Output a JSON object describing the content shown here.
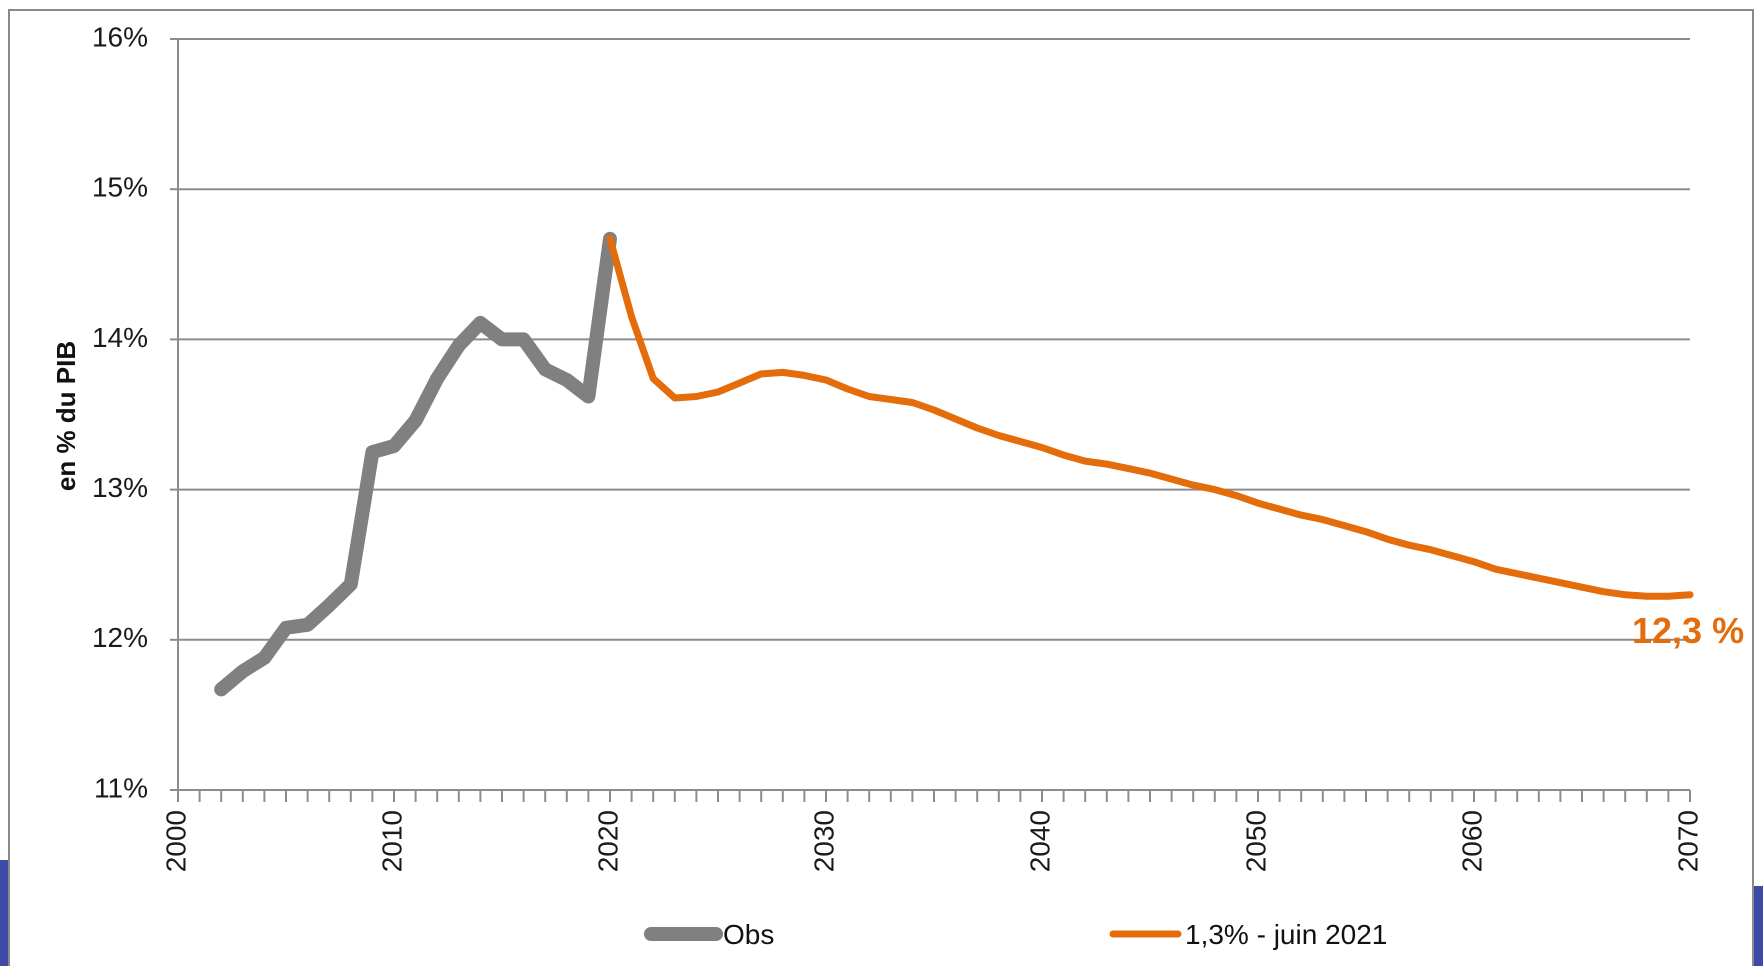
{
  "chart_data": {
    "type": "line",
    "title": "",
    "xlabel": "",
    "ylabel": "en % du PIB",
    "xlim": [
      2000,
      2070
    ],
    "ylim": [
      11,
      16
    ],
    "y_ticks": [
      11,
      12,
      13,
      14,
      15,
      16
    ],
    "y_tick_labels": [
      "11%",
      "12%",
      "13%",
      "14%",
      "15%",
      "16%"
    ],
    "x_ticks": [
      2000,
      2010,
      2020,
      2030,
      2040,
      2050,
      2060,
      2070
    ],
    "x_tick_labels": [
      "2000",
      "2010",
      "2020",
      "2030",
      "2040",
      "2050",
      "2060",
      "2070"
    ],
    "grid": true,
    "legend_position": "bottom",
    "series": [
      {
        "name": "Obs",
        "color": "#808080",
        "x": [
          2002,
          2003,
          2004,
          2005,
          2006,
          2007,
          2008,
          2009,
          2010,
          2011,
          2012,
          2013,
          2014,
          2015,
          2016,
          2017,
          2018,
          2019,
          2020
        ],
        "values": [
          11.67,
          11.79,
          11.88,
          12.08,
          12.1,
          12.23,
          12.37,
          13.25,
          13.29,
          13.46,
          13.74,
          13.96,
          14.11,
          14.0,
          14.0,
          13.8,
          13.73,
          13.62,
          14.67
        ]
      },
      {
        "name": "1,3% - juin 2021",
        "color": "#e46c0a",
        "x": [
          2020,
          2021,
          2022,
          2023,
          2024,
          2025,
          2026,
          2027,
          2028,
          2029,
          2030,
          2031,
          2032,
          2033,
          2034,
          2035,
          2036,
          2037,
          2038,
          2039,
          2040,
          2041,
          2042,
          2043,
          2044,
          2045,
          2046,
          2047,
          2048,
          2049,
          2050,
          2051,
          2052,
          2053,
          2054,
          2055,
          2056,
          2057,
          2058,
          2059,
          2060,
          2061,
          2062,
          2063,
          2064,
          2065,
          2066,
          2067,
          2068,
          2069,
          2070
        ],
        "values": [
          14.67,
          14.15,
          13.74,
          13.61,
          13.62,
          13.65,
          13.71,
          13.77,
          13.78,
          13.76,
          13.73,
          13.67,
          13.62,
          13.6,
          13.58,
          13.53,
          13.47,
          13.41,
          13.36,
          13.32,
          13.28,
          13.23,
          13.19,
          13.17,
          13.14,
          13.11,
          13.07,
          13.03,
          13.0,
          12.96,
          12.91,
          12.87,
          12.83,
          12.8,
          12.76,
          12.72,
          12.67,
          12.63,
          12.6,
          12.56,
          12.52,
          12.47,
          12.44,
          12.41,
          12.38,
          12.35,
          12.32,
          12.3,
          12.29,
          12.29,
          12.3
        ]
      }
    ],
    "annotations": [
      {
        "text": "12,3 %",
        "color": "#e46c0a"
      }
    ]
  }
}
